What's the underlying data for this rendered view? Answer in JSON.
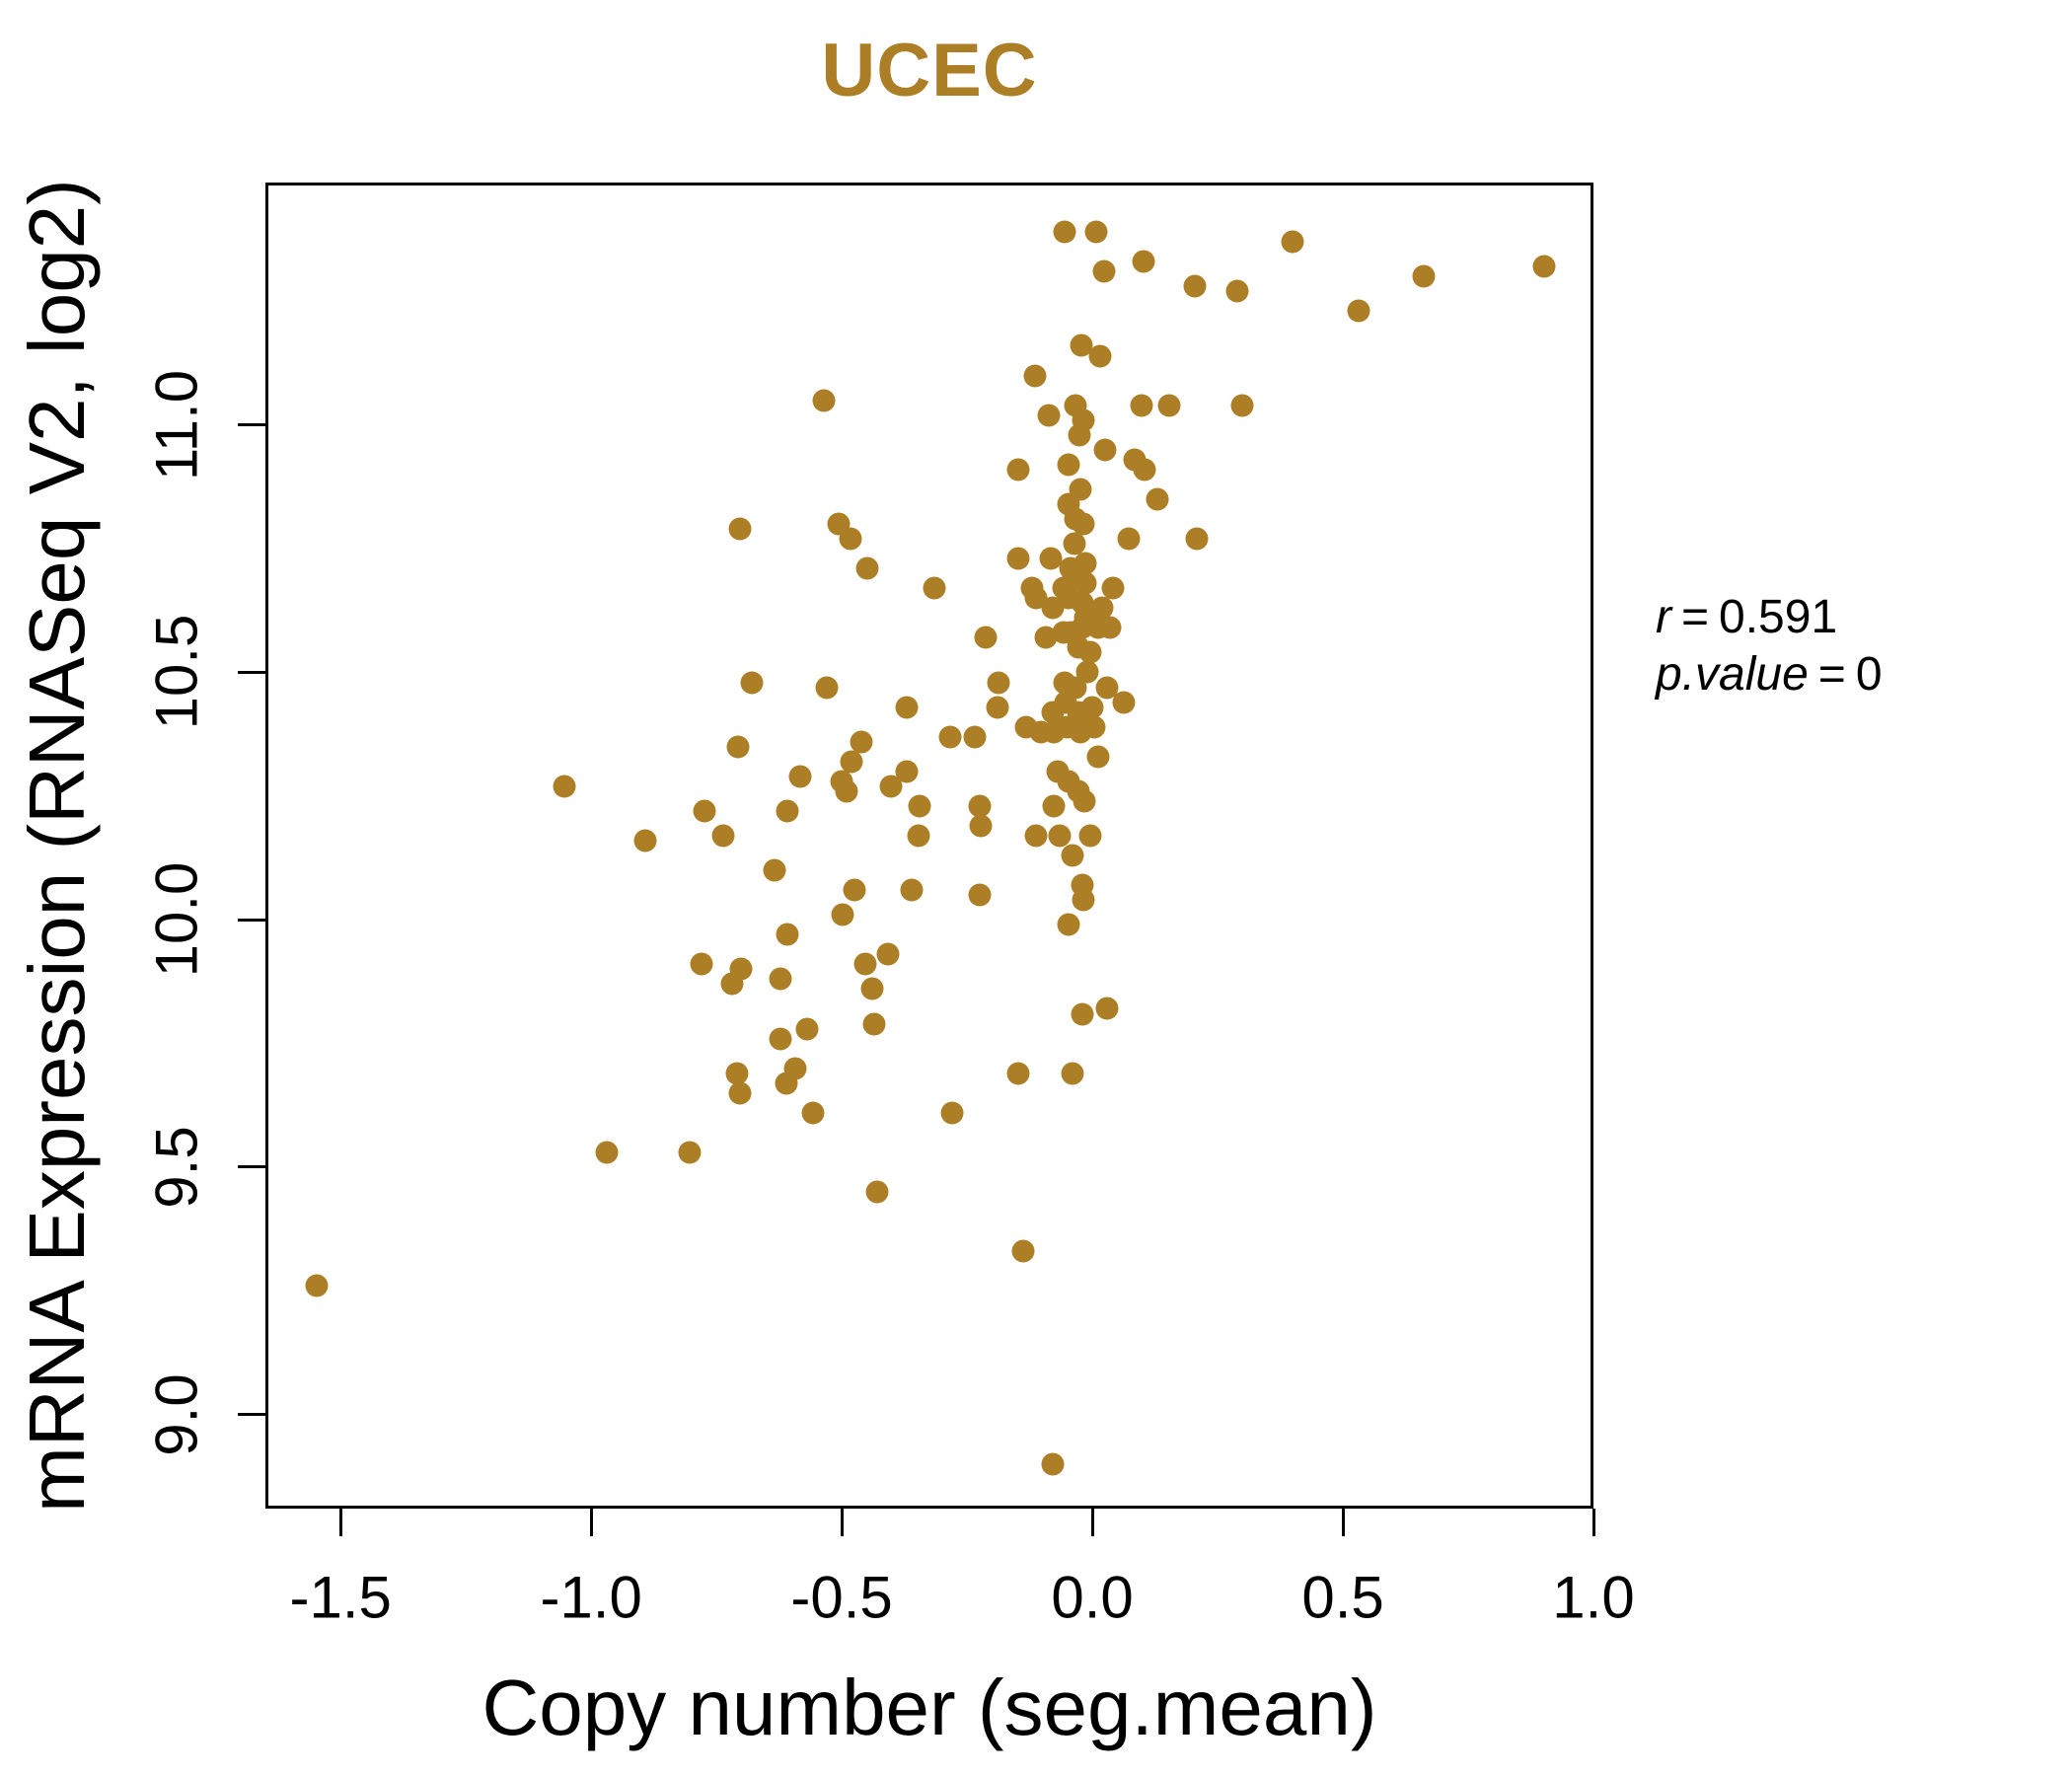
{
  "chart_data": {
    "type": "scatter",
    "title": "UCEC",
    "xlabel": "Copy number (seg.mean)",
    "ylabel": "mRNA Expression (RNASeq V2, log2)",
    "x_tick_labels": [
      "-1.5",
      "-1.0",
      "-0.5",
      "0.0",
      "0.5",
      "1.0"
    ],
    "y_tick_labels": [
      "9.0",
      "9.5",
      "10.0",
      "10.5",
      "11.0"
    ],
    "xlim": [
      -1.65,
      1.0
    ],
    "ylim": [
      8.81,
      11.49
    ],
    "grid": false,
    "legend": "none",
    "point_color": "#AC7F26",
    "title_color": "#AC7F26",
    "annotation": {
      "line1_var": "r",
      "equals": "=",
      "line1_value": "0.591",
      "line2_var": "p.value",
      "line2_value": "0"
    },
    "points": [
      [
        -0.055,
        11.39
      ],
      [
        0.008,
        11.39
      ],
      [
        0.023,
        11.31
      ],
      [
        0.103,
        11.33
      ],
      [
        0.204,
        11.28
      ],
      [
        0.289,
        11.27
      ],
      [
        0.4,
        11.37
      ],
      [
        0.532,
        11.23
      ],
      [
        0.661,
        11.3
      ],
      [
        0.902,
        11.32
      ],
      [
        -0.114,
        11.1
      ],
      [
        -0.022,
        11.16
      ],
      [
        0.016,
        11.14
      ],
      [
        -0.535,
        11.05
      ],
      [
        -0.033,
        11.04
      ],
      [
        -0.018,
        11.01
      ],
      [
        -0.087,
        11.02
      ],
      [
        0.098,
        11.04
      ],
      [
        0.154,
        11.04
      ],
      [
        0.299,
        11.04
      ],
      [
        -0.026,
        10.98
      ],
      [
        0.026,
        10.95
      ],
      [
        0.085,
        10.93
      ],
      [
        0.104,
        10.91
      ],
      [
        -0.148,
        10.91
      ],
      [
        -0.047,
        10.92
      ],
      [
        -0.024,
        10.87
      ],
      [
        -0.047,
        10.84
      ],
      [
        -0.033,
        10.81
      ],
      [
        -0.017,
        10.8
      ],
      [
        -0.506,
        10.8
      ],
      [
        -0.483,
        10.77
      ],
      [
        -0.703,
        10.79
      ],
      [
        0.073,
        10.77
      ],
      [
        0.209,
        10.77
      ],
      [
        0.13,
        10.85
      ],
      [
        -0.148,
        10.73
      ],
      [
        -0.083,
        10.73
      ],
      [
        -0.036,
        10.76
      ],
      [
        -0.014,
        10.72
      ],
      [
        -0.043,
        10.71
      ],
      [
        -0.449,
        10.71
      ],
      [
        -0.315,
        10.67
      ],
      [
        -0.12,
        10.67
      ],
      [
        -0.057,
        10.67
      ],
      [
        -0.037,
        10.69
      ],
      [
        -0.014,
        10.68
      ],
      [
        0.042,
        10.67
      ],
      [
        -0.047,
        10.65
      ],
      [
        -0.112,
        10.65
      ],
      [
        -0.019,
        10.64
      ],
      [
        -0.078,
        10.63
      ],
      [
        -0.014,
        10.61
      ],
      [
        0.019,
        10.63
      ],
      [
        -0.213,
        10.57
      ],
      [
        -0.092,
        10.57
      ],
      [
        -0.057,
        10.58
      ],
      [
        -0.043,
        10.58
      ],
      [
        -0.02,
        10.59
      ],
      [
        0.012,
        10.59
      ],
      [
        0.035,
        10.59
      ],
      [
        -0.028,
        10.55
      ],
      [
        -0.004,
        10.54
      ],
      [
        -0.01,
        10.5
      ],
      [
        0.029,
        10.47
      ],
      [
        -0.188,
        10.48
      ],
      [
        -0.056,
        10.48
      ],
      [
        -0.033,
        10.47
      ],
      [
        -0.529,
        10.47
      ],
      [
        -0.68,
        10.48
      ],
      [
        -0.371,
        10.43
      ],
      [
        -0.079,
        10.42
      ],
      [
        -0.053,
        10.44
      ],
      [
        -0.027,
        10.42
      ],
      [
        -0.001,
        10.43
      ],
      [
        0.062,
        10.44
      ],
      [
        -0.189,
        10.43
      ],
      [
        -0.132,
        10.39
      ],
      [
        -0.102,
        10.38
      ],
      [
        -0.076,
        10.38
      ],
      [
        -0.05,
        10.39
      ],
      [
        -0.024,
        10.38
      ],
      [
        0.003,
        10.39
      ],
      [
        -0.283,
        10.37
      ],
      [
        -0.234,
        10.37
      ],
      [
        -0.706,
        10.35
      ],
      [
        -0.461,
        10.36
      ],
      [
        -0.481,
        10.32
      ],
      [
        0.012,
        10.33
      ],
      [
        -0.583,
        10.29
      ],
      [
        -0.501,
        10.28
      ],
      [
        -0.491,
        10.26
      ],
      [
        -0.371,
        10.3
      ],
      [
        -0.401,
        10.27
      ],
      [
        -1.054,
        10.27
      ],
      [
        -0.069,
        10.3
      ],
      [
        -0.047,
        10.28
      ],
      [
        -0.027,
        10.26
      ],
      [
        -0.076,
        10.23
      ],
      [
        -0.015,
        10.24
      ],
      [
        -0.774,
        10.22
      ],
      [
        -0.608,
        10.22
      ],
      [
        -0.345,
        10.23
      ],
      [
        -0.224,
        10.23
      ],
      [
        -0.892,
        10.16
      ],
      [
        -0.736,
        10.17
      ],
      [
        -0.347,
        10.17
      ],
      [
        -0.222,
        10.19
      ],
      [
        -0.112,
        10.17
      ],
      [
        -0.066,
        10.17
      ],
      [
        -0.004,
        10.17
      ],
      [
        -0.04,
        10.13
      ],
      [
        -0.634,
        10.1
      ],
      [
        -0.474,
        10.06
      ],
      [
        -0.36,
        10.06
      ],
      [
        -0.225,
        10.05
      ],
      [
        -0.02,
        10.07
      ],
      [
        -0.017,
        10.04
      ],
      [
        -0.047,
        9.99
      ],
      [
        -0.499,
        10.01
      ],
      [
        -0.608,
        9.97
      ],
      [
        -0.701,
        9.9
      ],
      [
        -0.719,
        9.87
      ],
      [
        -0.78,
        9.91
      ],
      [
        -0.623,
        9.88
      ],
      [
        -0.452,
        9.91
      ],
      [
        -0.407,
        9.93
      ],
      [
        -0.44,
        9.86
      ],
      [
        -0.435,
        9.79
      ],
      [
        -0.02,
        9.81
      ],
      [
        0.029,
        9.82
      ],
      [
        -0.57,
        9.78
      ],
      [
        -0.623,
        9.76
      ],
      [
        -0.593,
        9.7
      ],
      [
        -0.709,
        9.69
      ],
      [
        -0.703,
        9.65
      ],
      [
        -0.558,
        9.61
      ],
      [
        -0.28,
        9.61
      ],
      [
        -0.148,
        9.69
      ],
      [
        -0.04,
        9.69
      ],
      [
        -0.611,
        9.67
      ],
      [
        -0.43,
        9.45
      ],
      [
        -0.137,
        9.33
      ],
      [
        -0.969,
        9.53
      ],
      [
        -0.804,
        9.53
      ],
      [
        -1.548,
        9.26
      ],
      [
        -0.079,
        8.9
      ]
    ]
  }
}
